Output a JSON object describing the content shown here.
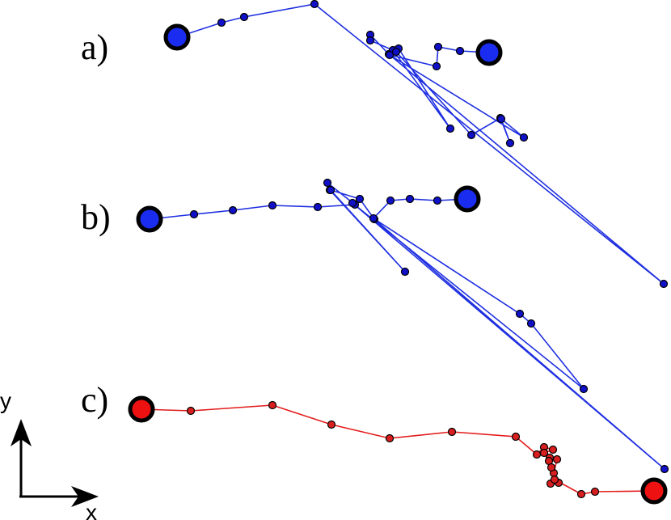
{
  "labels": {
    "a": "a)",
    "b": "b)",
    "c": "c)"
  },
  "axes": {
    "x": "x",
    "y": "y"
  },
  "colors": {
    "blue_path": "#1f2fe0",
    "blue_node": "#1010c8",
    "blue_endpoint": "#1a2cf0",
    "red_path": "#e31b1b",
    "red_node": "#d81e1e",
    "red_endpoint": "#ee1111",
    "outline": "#000000"
  }
}
